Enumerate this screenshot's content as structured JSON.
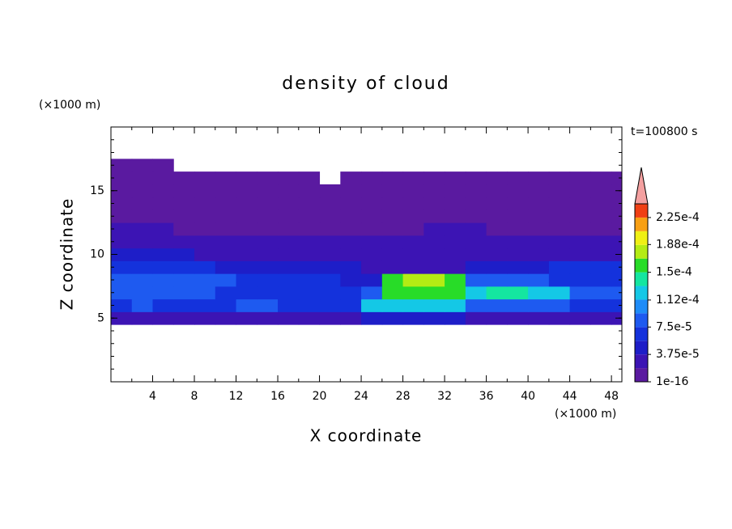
{
  "chart_data": {
    "type": "contour",
    "title": "density of cloud",
    "annotation": "t=100800 s",
    "xlabel": "X coordinate",
    "ylabel": "Z coordinate",
    "xunit": "(×1000 m)",
    "yunit": "(×1000 m)",
    "xlim": [
      0,
      49
    ],
    "ylim": [
      0,
      20
    ],
    "xticks": [
      4,
      8,
      12,
      16,
      20,
      24,
      28,
      32,
      36,
      40,
      44,
      48
    ],
    "yticks": [
      5,
      10,
      15
    ],
    "field": {
      "x": [
        1,
        3,
        5,
        7,
        9,
        11,
        13,
        15,
        17,
        19,
        21,
        23,
        25,
        27,
        29,
        31,
        33,
        35,
        37,
        39,
        41,
        43,
        45,
        47,
        49
      ],
      "y": [
        5,
        6,
        7,
        8,
        9,
        10,
        11,
        12,
        13,
        14,
        15,
        16,
        17
      ],
      "values": [
        [
          2.5e-05,
          2.5e-05,
          2.5e-05,
          2.5e-05,
          2.5e-05,
          2.5e-05,
          2.5e-05,
          2.5e-05,
          2.5e-05,
          2.5e-05,
          2.5e-05,
          2.5e-05,
          4.5e-05,
          4.5e-05,
          4.5e-05,
          4.5e-05,
          4.5e-05,
          2.5e-05,
          2.5e-05,
          2.5e-05,
          2.5e-05,
          2.5e-05,
          2.5e-05,
          2.5e-05,
          2.5e-05
        ],
        [
          6e-05,
          8e-05,
          6e-05,
          6e-05,
          6e-05,
          6e-05,
          8e-05,
          8e-05,
          6e-05,
          6e-05,
          6e-05,
          6e-05,
          0.00012,
          0.00012,
          0.00012,
          0.00012,
          0.00012,
          8e-05,
          8e-05,
          8e-05,
          8e-05,
          8e-05,
          6e-05,
          6e-05,
          6e-05
        ],
        [
          8e-05,
          8e-05,
          8e-05,
          8e-05,
          8e-05,
          6e-05,
          6e-05,
          6e-05,
          6e-05,
          6e-05,
          6e-05,
          6e-05,
          8e-05,
          0.000155,
          0.000155,
          0.000155,
          0.000155,
          0.00012,
          0.00015,
          0.00015,
          0.00012,
          0.00012,
          8e-05,
          8e-05,
          8e-05
        ],
        [
          8e-05,
          8e-05,
          8e-05,
          8e-05,
          8e-05,
          8e-05,
          6e-05,
          6e-05,
          6e-05,
          6e-05,
          6e-05,
          4.5e-05,
          4.5e-05,
          0.000155,
          0.00018,
          0.00018,
          0.000155,
          8e-05,
          8e-05,
          8e-05,
          8e-05,
          6e-05,
          6e-05,
          6e-05,
          6e-05
        ],
        [
          6e-05,
          6e-05,
          6e-05,
          6e-05,
          6e-05,
          4.5e-05,
          4.5e-05,
          4.5e-05,
          4.5e-05,
          4.5e-05,
          4.5e-05,
          4.5e-05,
          2.5e-05,
          2.5e-05,
          2.5e-05,
          2.5e-05,
          2.5e-05,
          4.5e-05,
          4.5e-05,
          4.5e-05,
          4.5e-05,
          6e-05,
          6e-05,
          6e-05,
          6e-05
        ],
        [
          4.5e-05,
          4.5e-05,
          4.5e-05,
          4.5e-05,
          2.5e-05,
          2.5e-05,
          2.5e-05,
          2.5e-05,
          2.5e-05,
          2.5e-05,
          2.5e-05,
          2.5e-05,
          2.5e-05,
          2.5e-05,
          2.5e-05,
          2.5e-05,
          2.5e-05,
          2.5e-05,
          2.5e-05,
          2.5e-05,
          2.5e-05,
          2.5e-05,
          2.5e-05,
          2.5e-05,
          2.5e-05
        ],
        [
          2.5e-05,
          2.5e-05,
          2.5e-05,
          2.5e-05,
          2.5e-05,
          2.5e-05,
          2.5e-05,
          2.5e-05,
          2.5e-05,
          2.5e-05,
          2.5e-05,
          2.5e-05,
          2.5e-05,
          2.5e-05,
          2.5e-05,
          2.5e-05,
          2.5e-05,
          2.5e-05,
          2.5e-05,
          2.5e-05,
          2.5e-05,
          2.5e-05,
          2.5e-05,
          2.5e-05,
          2.5e-05
        ],
        [
          2.5e-05,
          2.5e-05,
          2.5e-05,
          1e-05,
          1e-05,
          1e-05,
          1e-05,
          1e-05,
          1e-05,
          1e-05,
          1e-05,
          1e-05,
          1e-05,
          1e-05,
          1e-05,
          2.5e-05,
          2.5e-05,
          2.5e-05,
          1e-05,
          1e-05,
          1e-05,
          1e-05,
          1e-05,
          1e-05,
          1e-05
        ],
        [
          1e-05,
          1e-05,
          1e-05,
          1e-05,
          1e-05,
          1e-05,
          1e-05,
          1e-05,
          1e-05,
          1e-05,
          1e-05,
          1e-05,
          1e-05,
          1e-05,
          1e-05,
          1e-05,
          1e-05,
          1e-05,
          1e-05,
          1e-05,
          1e-05,
          1e-05,
          1e-05,
          1e-05,
          1e-05
        ],
        [
          1e-05,
          1e-05,
          1e-05,
          1e-05,
          1e-05,
          1e-05,
          1e-05,
          1e-05,
          1e-05,
          1e-05,
          1e-05,
          1e-05,
          1e-05,
          1e-05,
          1e-05,
          1e-05,
          1e-05,
          1e-05,
          1e-05,
          1e-05,
          1e-05,
          1e-05,
          1e-05,
          1e-05,
          1e-05
        ],
        [
          1e-05,
          1e-05,
          1e-05,
          1e-05,
          1e-05,
          1e-05,
          1e-05,
          1e-05,
          1e-05,
          1e-05,
          1e-05,
          1e-05,
          1e-05,
          1e-05,
          1e-05,
          1e-05,
          1e-05,
          1e-05,
          1e-05,
          1e-05,
          1e-05,
          1e-05,
          1e-05,
          1e-05,
          1e-05
        ],
        [
          1e-05,
          1e-05,
          1e-05,
          1e-05,
          1e-05,
          1e-05,
          1e-05,
          1e-05,
          1e-05,
          1e-05,
          null,
          1e-05,
          1e-05,
          1e-05,
          1e-05,
          1e-05,
          1e-05,
          1e-05,
          1e-05,
          1e-05,
          1e-05,
          1e-05,
          1e-05,
          1e-05,
          1e-05
        ],
        [
          1e-05,
          1e-05,
          1e-05,
          null,
          null,
          null,
          null,
          null,
          null,
          null,
          null,
          null,
          null,
          null,
          null,
          null,
          null,
          null,
          null,
          null,
          null,
          null,
          null,
          null,
          null
        ]
      ]
    },
    "clim": [
      1e-16,
      0.00024375
    ],
    "colors": [
      "#5a1aa0",
      "#3c14b4",
      "#1e1ec8",
      "#1432dc",
      "#1e5af0",
      "#1e8cf8",
      "#14c8e6",
      "#14e6a0",
      "#28dc28",
      "#b4ec14",
      "#f0f014",
      "#f8a014",
      "#f04014"
    ],
    "extend_color": "#f4a0a0",
    "cticks": [
      1e-16,
      {
        "value": 3.75e-05,
        "label": "3.75e-5"
      },
      {
        "value": 7.5e-05,
        "label": "7.5e-5"
      },
      {
        "value": 0.000112,
        "label": "1.12e-4"
      },
      {
        "value": 0.00015,
        "label": "1.5e-4"
      },
      {
        "value": 0.000188,
        "label": "1.88e-4"
      },
      {
        "value": 0.000225,
        "label": "2.25e-4"
      }
    ]
  }
}
